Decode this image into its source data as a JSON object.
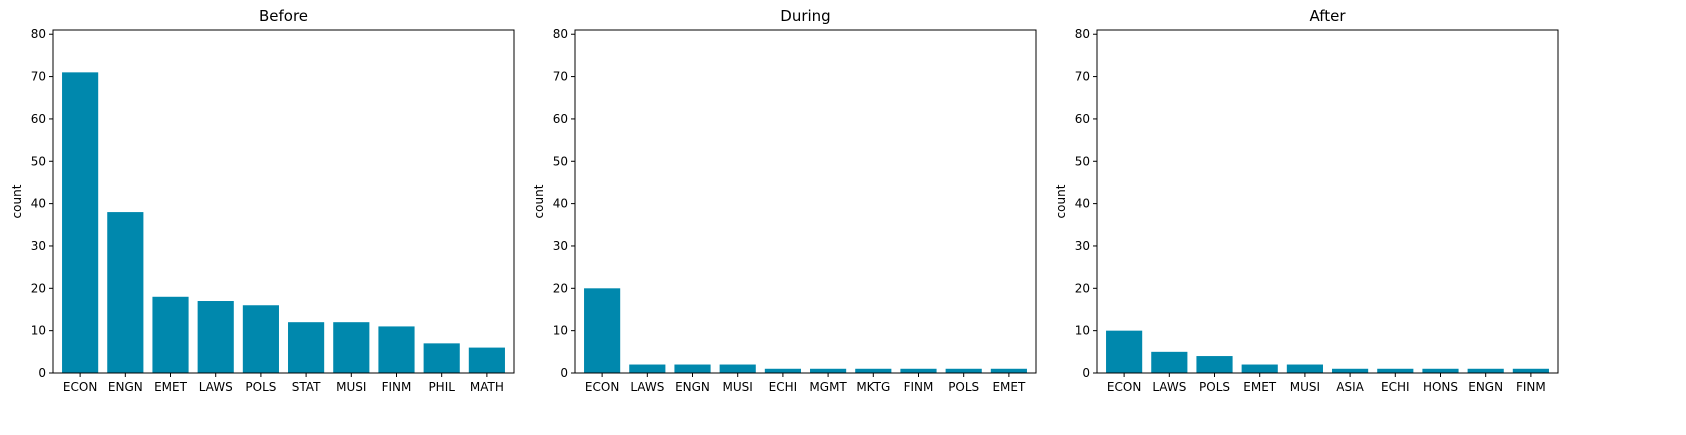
{
  "chart_data": [
    {
      "type": "bar",
      "title": "Before",
      "xlabel": "",
      "ylabel": "count",
      "ylim": [
        0,
        81
      ],
      "yticks": [
        0,
        10,
        20,
        30,
        40,
        50,
        60,
        70,
        80
      ],
      "grid": false,
      "bar_color": "#0088ad",
      "categories": [
        "ECON",
        "ENGN",
        "EMET",
        "LAWS",
        "POLS",
        "STAT",
        "MUSI",
        "FINM",
        "PHIL",
        "MATH"
      ],
      "values": [
        71,
        38,
        18,
        17,
        16,
        12,
        12,
        11,
        7,
        6
      ]
    },
    {
      "type": "bar",
      "title": "During",
      "xlabel": "",
      "ylabel": "count",
      "ylim": [
        0,
        81
      ],
      "yticks": [
        0,
        10,
        20,
        30,
        40,
        50,
        60,
        70,
        80
      ],
      "grid": false,
      "bar_color": "#0088ad",
      "categories": [
        "ECON",
        "LAWS",
        "ENGN",
        "MUSI",
        "ECHI",
        "MGMT",
        "MKTG",
        "FINM",
        "POLS",
        "EMET"
      ],
      "values": [
        20,
        2,
        2,
        2,
        1,
        1,
        1,
        1,
        1,
        1
      ]
    },
    {
      "type": "bar",
      "title": "After",
      "xlabel": "",
      "ylabel": "count",
      "ylim": [
        0,
        81
      ],
      "yticks": [
        0,
        10,
        20,
        30,
        40,
        50,
        60,
        70,
        80
      ],
      "grid": false,
      "bar_color": "#0088ad",
      "categories": [
        "ECON",
        "LAWS",
        "POLS",
        "EMET",
        "MUSI",
        "ASIA",
        "ECHI",
        "HONS",
        "ENGN",
        "FINM"
      ],
      "values": [
        10,
        5,
        4,
        2,
        2,
        1,
        1,
        1,
        1,
        1
      ]
    }
  ]
}
